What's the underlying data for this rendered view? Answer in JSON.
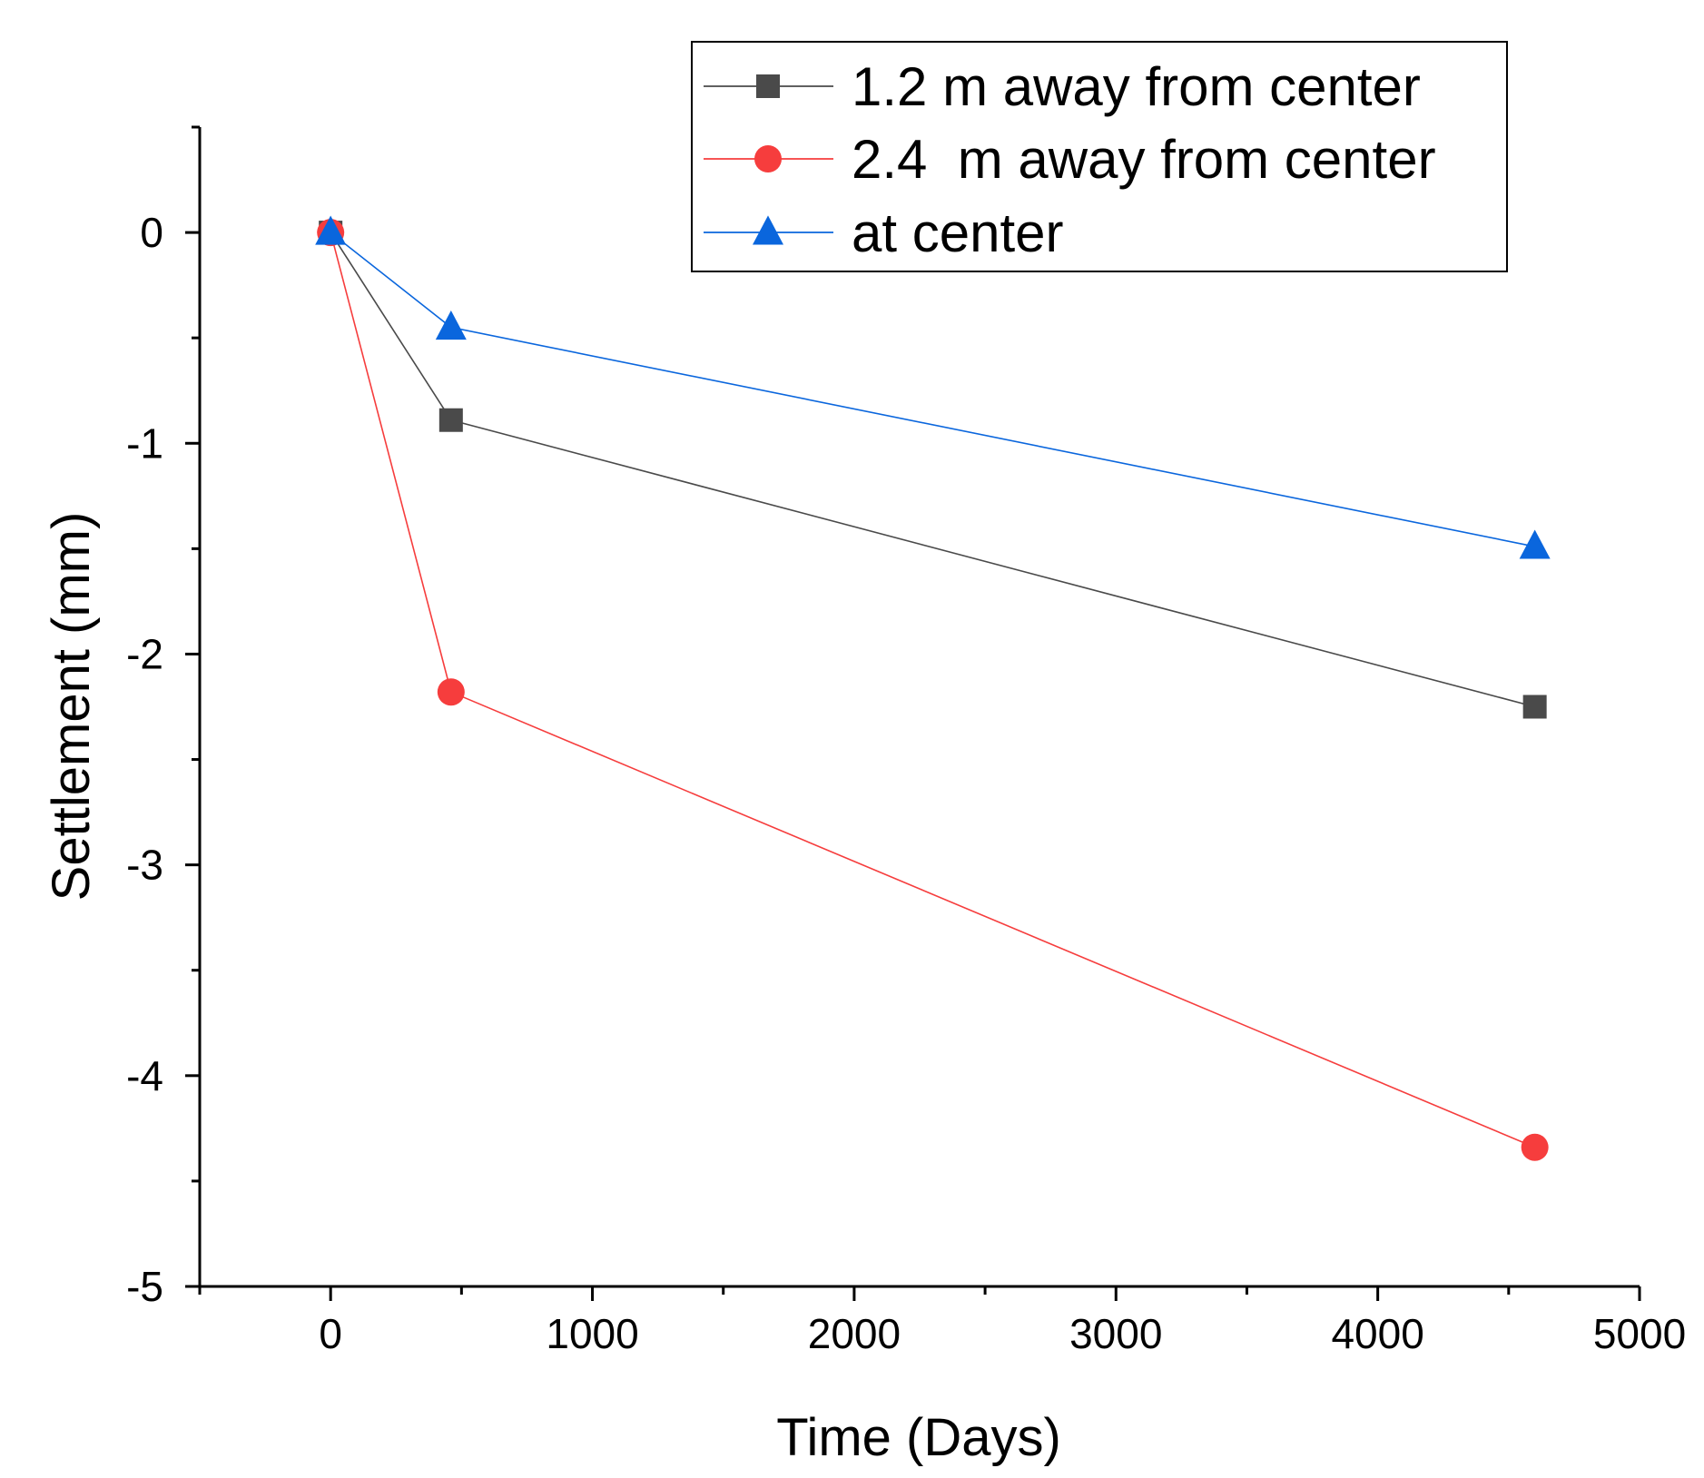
{
  "chart_data": {
    "type": "line",
    "title": "",
    "xlabel": "Time (Days)",
    "ylabel": "Settlement (mm)",
    "xlim": [
      -500,
      5000
    ],
    "ylim": [
      -5,
      0.5
    ],
    "x_ticks": [
      0,
      1000,
      2000,
      3000,
      4000,
      5000
    ],
    "x_tick_labels": [
      "0",
      "1000",
      "2000",
      "3000",
      "4000",
      "5000"
    ],
    "x_minor_ticks": [
      -500,
      500,
      1500,
      2500,
      3500,
      4500
    ],
    "y_ticks": [
      0,
      -1,
      -2,
      -3,
      -4,
      -5
    ],
    "y_tick_labels": [
      "0",
      "-1",
      "-2",
      "-3",
      "-4",
      "-5"
    ],
    "y_minor_ticks": [
      0.5,
      -0.5,
      -1.5,
      -2.5,
      -3.5,
      -4.5
    ],
    "grid": false,
    "legend_position": "top-right",
    "series": [
      {
        "name": "1.2 m away from center",
        "marker": "square",
        "color": "#4a4a4a",
        "x": [
          0,
          460,
          4600
        ],
        "y": [
          0,
          -0.89,
          -2.25
        ]
      },
      {
        "name": "2.4  m away from center",
        "marker": "circle",
        "color": "#f63d3d",
        "x": [
          0,
          460,
          4600
        ],
        "y": [
          0,
          -2.18,
          -4.34
        ]
      },
      {
        "name": "at center",
        "marker": "triangle",
        "color": "#0a66dd",
        "x": [
          0,
          460,
          4600
        ],
        "y": [
          0,
          -0.45,
          -1.49
        ]
      }
    ]
  }
}
